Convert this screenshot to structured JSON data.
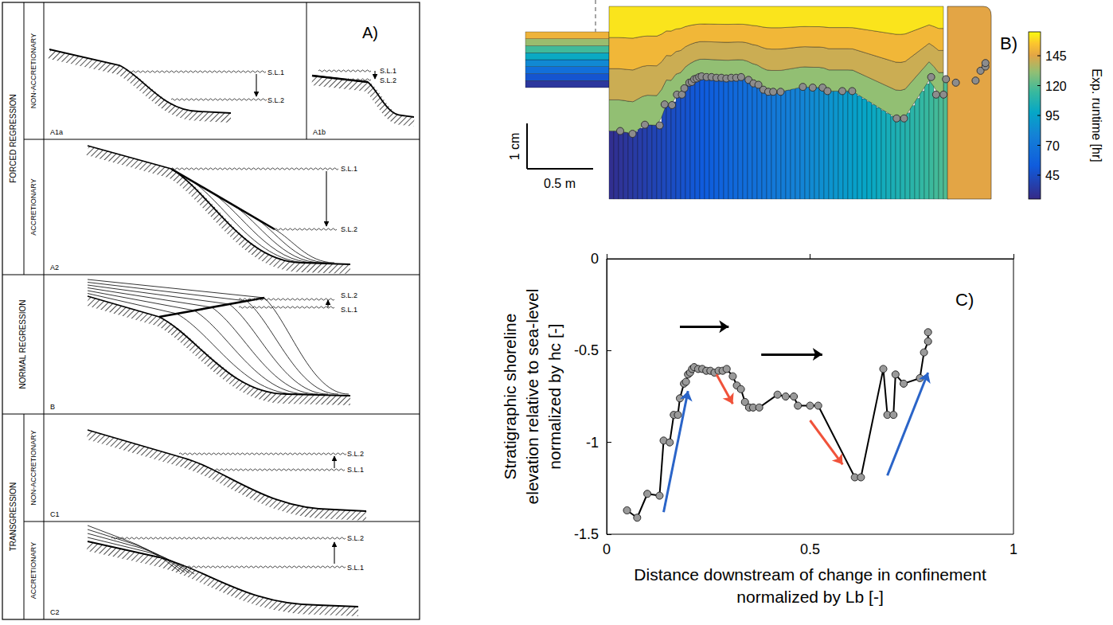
{
  "panel_a": {
    "label": "A)",
    "sea_levels": [
      "S.L.1",
      "S.L.2"
    ],
    "groups": [
      {
        "title": "FORCED REGRESSION",
        "rows": [
          {
            "subtitle": "NON-ACCRETIONARY",
            "panels": [
              "A1a",
              "A1b"
            ]
          },
          {
            "subtitle": "ACCRETIONARY",
            "panels": [
              "A2"
            ]
          }
        ]
      },
      {
        "title": "NORMAL REGRESSION",
        "rows": [
          {
            "panels": [
              "B"
            ]
          }
        ]
      },
      {
        "title": "TRANSGRESSION",
        "rows": [
          {
            "subtitle": "NON-ACCRETIONARY",
            "panels": [
              "C1"
            ]
          },
          {
            "subtitle": "ACCRETIONARY",
            "panels": [
              "C2"
            ]
          }
        ]
      }
    ]
  },
  "panel_b": {
    "label": "B)",
    "scale_bar": {
      "vertical": "1 cm",
      "horizontal": "0.5 m"
    },
    "colorbar": {
      "title": "Exp. runtime [hr]",
      "range": [
        25,
        165
      ],
      "ticks": [
        45,
        70,
        95,
        120,
        145
      ]
    }
  },
  "chart_data": {
    "type": "line",
    "panel_label": "C)",
    "xlabel": "Distance downstream of change in confinement normalized by Lb [-]",
    "ylabel": "Stratigraphic shoreline elevation relative to sea-level normalized by hc [-]",
    "x": [
      0.05,
      0.075,
      0.1,
      0.13,
      0.14,
      0.155,
      0.165,
      0.175,
      0.18,
      0.19,
      0.195,
      0.2,
      0.205,
      0.21,
      0.215,
      0.225,
      0.235,
      0.245,
      0.255,
      0.265,
      0.275,
      0.285,
      0.295,
      0.31,
      0.32,
      0.33,
      0.34,
      0.35,
      0.36,
      0.375,
      0.42,
      0.44,
      0.46,
      0.47,
      0.5,
      0.52,
      0.61,
      0.625,
      0.68,
      0.69,
      0.705,
      0.71,
      0.73,
      0.77,
      0.78,
      0.79,
      0.79
    ],
    "values": [
      -1.37,
      -1.41,
      -1.28,
      -1.29,
      -0.99,
      -1.0,
      -0.85,
      -0.85,
      -0.76,
      -0.68,
      -0.67,
      -0.63,
      -0.62,
      -0.6,
      -0.59,
      -0.6,
      -0.6,
      -0.61,
      -0.61,
      -0.62,
      -0.61,
      -0.61,
      -0.6,
      -0.64,
      -0.69,
      -0.71,
      -0.78,
      -0.81,
      -0.81,
      -0.81,
      -0.74,
      -0.75,
      -0.75,
      -0.8,
      -0.8,
      -0.8,
      -1.19,
      -1.19,
      -0.6,
      -0.85,
      -0.85,
      -0.63,
      -0.68,
      -0.65,
      -0.51,
      -0.45,
      -0.4
    ],
    "color": "#000000",
    "marker": "circle",
    "xlim": [
      0,
      1
    ],
    "xticks": [
      0,
      0.5,
      1
    ],
    "ylim": [
      -1.5,
      0
    ],
    "yticks": [
      -1.5,
      -1,
      -0.5,
      0
    ],
    "grid": false,
    "arrows": [
      {
        "from": [
          0.14,
          -1.38
        ],
        "to": [
          0.2,
          -0.72
        ],
        "color": "#2a64c8"
      },
      {
        "from": [
          0.69,
          -1.18
        ],
        "to": [
          0.79,
          -0.62
        ],
        "color": "#2a64c8"
      },
      {
        "from": [
          0.27,
          -0.63
        ],
        "to": [
          0.31,
          -0.79
        ],
        "color": "#f0523a"
      },
      {
        "from": [
          0.5,
          -0.88
        ],
        "to": [
          0.58,
          -1.12
        ],
        "color": "#f0523a"
      },
      {
        "from": [
          0.18,
          -0.37
        ],
        "to": [
          0.3,
          -0.37
        ],
        "color": "#000000"
      },
      {
        "from": [
          0.38,
          -0.52
        ],
        "to": [
          0.53,
          -0.52
        ],
        "color": "#000000"
      }
    ]
  }
}
